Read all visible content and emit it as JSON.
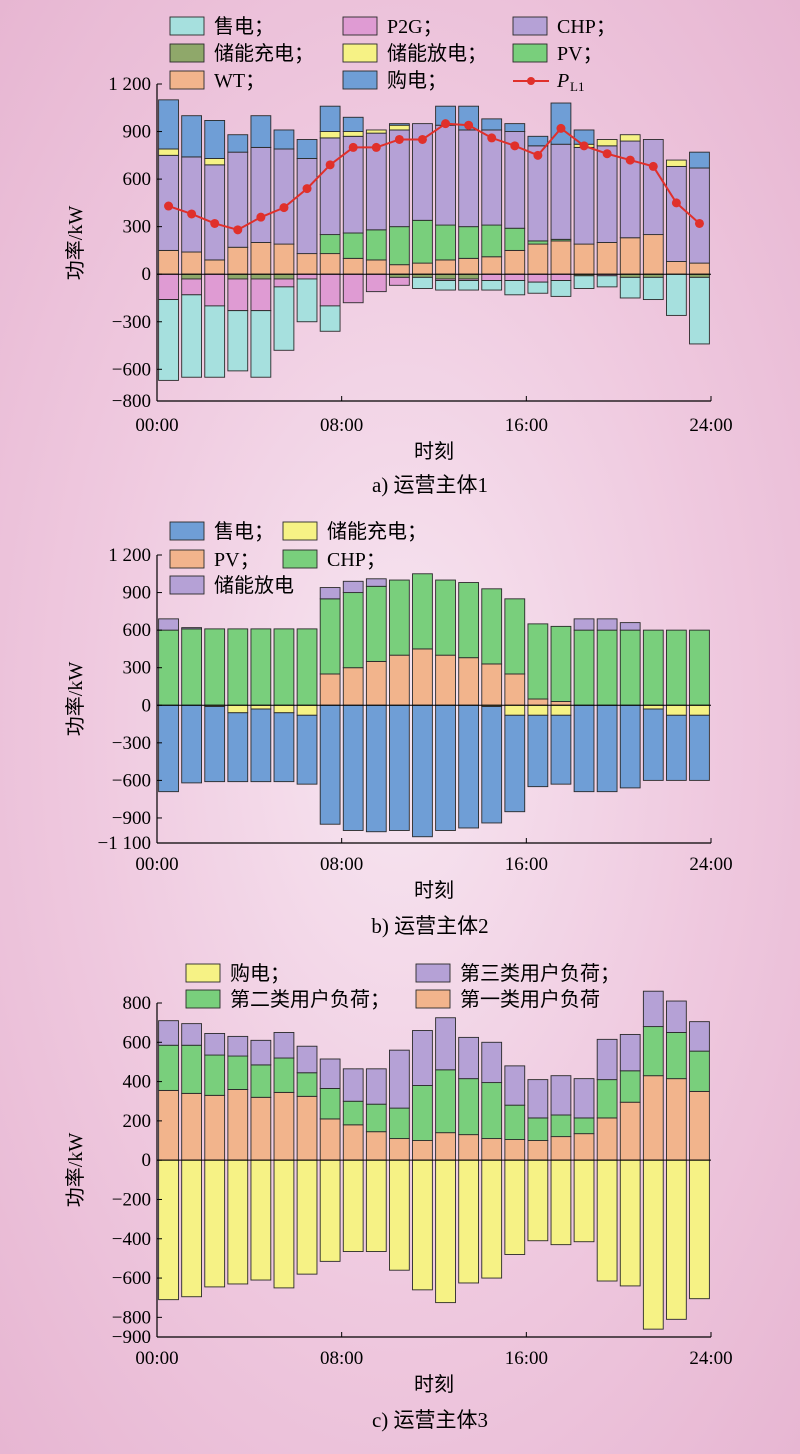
{
  "chart_data": [
    {
      "type": "bar",
      "stacked": true,
      "caption": "a) 运营主体1",
      "xlabel": "时刻",
      "ylabel": "功率/kW",
      "ylim": [
        -800,
        1200
      ],
      "yticks": [
        -800,
        -600,
        -300,
        0,
        300,
        600,
        900,
        1200
      ],
      "ytick_labels": [
        "−800",
        "−600",
        "−300",
        "0",
        "300",
        "600",
        "900",
        "1 200"
      ],
      "xticks": [
        "00:00",
        "08:00",
        "16:00",
        "24:00"
      ],
      "hours": [
        1,
        2,
        3,
        4,
        5,
        6,
        7,
        8,
        9,
        10,
        11,
        12,
        13,
        14,
        15,
        16,
        17,
        18,
        19,
        20,
        21,
        22,
        23,
        24
      ],
      "legend": [
        "售电；",
        "储能充电；",
        "P2G；",
        "储能放电；",
        "CHP；",
        "PV；",
        "WT；",
        "购电；"
      ],
      "pl1_label": "P",
      "pl1_sub": "L1",
      "series": [
        {
          "name": "WT",
          "color": "#f2b48c",
          "values": [
            150,
            140,
            90,
            170,
            200,
            190,
            130,
            130,
            100,
            90,
            60,
            70,
            90,
            100,
            110,
            150,
            190,
            210,
            190,
            200,
            230,
            250,
            80,
            70
          ]
        },
        {
          "name": "PV",
          "color": "#79cf7c",
          "values": [
            0,
            0,
            0,
            0,
            0,
            0,
            0,
            120,
            160,
            190,
            240,
            270,
            220,
            200,
            200,
            140,
            20,
            10,
            0,
            0,
            0,
            0,
            0,
            0
          ]
        },
        {
          "name": "CHP",
          "color": "#b5a1d6",
          "values": [
            600,
            600,
            600,
            600,
            600,
            600,
            600,
            610,
            610,
            610,
            610,
            610,
            630,
            610,
            600,
            610,
            600,
            600,
            610,
            610,
            610,
            600,
            600,
            600
          ]
        },
        {
          "name": "储能放电",
          "color": "#f6f285",
          "values": [
            40,
            0,
            40,
            0,
            0,
            0,
            0,
            40,
            30,
            20,
            30,
            0,
            0,
            0,
            0,
            0,
            0,
            0,
            20,
            40,
            40,
            0,
            40,
            0
          ]
        },
        {
          "name": "购电",
          "color": "#6f9ed6",
          "values": [
            310,
            260,
            240,
            110,
            200,
            120,
            120,
            160,
            90,
            0,
            10,
            0,
            120,
            150,
            70,
            50,
            60,
            260,
            90,
            0,
            0,
            0,
            0,
            100
          ]
        },
        {
          "name": "储能充电",
          "color": "#8fa86a",
          "values": [
            0,
            -30,
            0,
            -30,
            -30,
            -30,
            0,
            0,
            0,
            0,
            -20,
            -20,
            -30,
            -30,
            0,
            0,
            0,
            0,
            -10,
            0,
            -20,
            -20,
            0,
            -20
          ]
        },
        {
          "name": "P2G",
          "color": "#df9bd3",
          "values": [
            -160,
            -100,
            -200,
            -200,
            -200,
            -50,
            -30,
            -200,
            -180,
            -110,
            -50,
            0,
            -10,
            -10,
            -40,
            -40,
            -50,
            -40,
            0,
            -10,
            0,
            0,
            0,
            0
          ]
        },
        {
          "name": "售电",
          "color": "#a6e0de",
          "values": [
            -510,
            -520,
            -450,
            -380,
            -420,
            -400,
            -270,
            -160,
            0,
            0,
            0,
            -70,
            -60,
            -60,
            -60,
            -90,
            -70,
            -100,
            -80,
            -70,
            -130,
            -140,
            -260,
            -420
          ]
        }
      ],
      "PL1": [
        430,
        380,
        320,
        280,
        360,
        420,
        540,
        690,
        800,
        800,
        850,
        850,
        950,
        940,
        860,
        810,
        750,
        920,
        810,
        760,
        720,
        680,
        450,
        320
      ]
    },
    {
      "type": "bar",
      "stacked": true,
      "caption": "b) 运营主体2",
      "xlabel": "时刻",
      "ylabel": "功率/kW",
      "ylim": [
        -1100,
        1200
      ],
      "yticks": [
        -1100,
        -900,
        -600,
        -300,
        0,
        300,
        600,
        900,
        1200
      ],
      "ytick_labels": [
        "−1 100",
        "−900",
        "−600",
        "−300",
        "0",
        "300",
        "600",
        "900",
        "1 200"
      ],
      "xticks": [
        "00:00",
        "08:00",
        "16:00",
        "24:00"
      ],
      "hours": [
        1,
        2,
        3,
        4,
        5,
        6,
        7,
        8,
        9,
        10,
        11,
        12,
        13,
        14,
        15,
        16,
        17,
        18,
        19,
        20,
        21,
        22,
        23,
        24
      ],
      "legend": [
        "售电；",
        "储能充电；",
        "PV；",
        "CHP；",
        "储能放电"
      ],
      "series": [
        {
          "name": "PV",
          "color": "#f2b48c",
          "values": [
            0,
            0,
            0,
            0,
            0,
            0,
            0,
            250,
            300,
            350,
            400,
            450,
            400,
            380,
            330,
            250,
            50,
            30,
            0,
            0,
            0,
            0,
            0,
            0
          ]
        },
        {
          "name": "CHP",
          "color": "#79cf7c",
          "values": [
            600,
            610,
            610,
            610,
            610,
            610,
            610,
            600,
            600,
            600,
            600,
            600,
            600,
            600,
            600,
            600,
            600,
            600,
            600,
            600,
            600,
            600,
            600,
            600
          ]
        },
        {
          "name": "储能放电",
          "color": "#b5a1d6",
          "values": [
            90,
            10,
            0,
            0,
            0,
            0,
            0,
            90,
            90,
            60,
            0,
            0,
            0,
            0,
            0,
            0,
            0,
            0,
            90,
            90,
            60,
            0,
            0,
            0
          ]
        },
        {
          "name": "储能充电",
          "color": "#f6f285",
          "values": [
            0,
            0,
            -10,
            -60,
            -30,
            -60,
            -80,
            0,
            0,
            0,
            0,
            0,
            0,
            0,
            -10,
            -80,
            -80,
            -80,
            0,
            0,
            0,
            -30,
            -80,
            -80
          ]
        },
        {
          "name": "售电",
          "color": "#6f9ed6",
          "values": [
            -690,
            -620,
            -600,
            -550,
            -580,
            -550,
            -550,
            -950,
            -1000,
            -1010,
            -1000,
            -1050,
            -1000,
            -980,
            -930,
            -770,
            -570,
            -550,
            -690,
            -690,
            -660,
            -570,
            -520,
            -520
          ]
        }
      ]
    },
    {
      "type": "bar",
      "stacked": true,
      "caption": "c) 运营主体3",
      "xlabel": "时刻",
      "ylabel": "功率/kW",
      "ylim": [
        -900,
        800
      ],
      "yticks": [
        -900,
        -800,
        -600,
        -400,
        -200,
        0,
        200,
        400,
        600,
        800
      ],
      "ytick_labels": [
        "−900",
        "−800",
        "−600",
        "−400",
        "−200",
        "0",
        "200",
        "400",
        "600",
        "800"
      ],
      "xticks": [
        "00:00",
        "08:00",
        "16:00",
        "24:00"
      ],
      "hours": [
        1,
        2,
        3,
        4,
        5,
        6,
        7,
        8,
        9,
        10,
        11,
        12,
        13,
        14,
        15,
        16,
        17,
        18,
        19,
        20,
        21,
        22,
        23,
        24
      ],
      "legend": [
        "购电；",
        "第三类用户负荷；",
        "第二类用户负荷；",
        "第一类用户负荷"
      ],
      "series": [
        {
          "name": "第一类用户负荷",
          "color": "#f2b48c",
          "values": [
            355,
            340,
            330,
            360,
            320,
            345,
            325,
            210,
            180,
            145,
            110,
            100,
            140,
            130,
            110,
            105,
            100,
            120,
            135,
            215,
            295,
            430,
            415,
            350
          ]
        },
        {
          "name": "第二类用户负荷",
          "color": "#79cf7c",
          "values": [
            230,
            245,
            205,
            170,
            165,
            175,
            120,
            155,
            120,
            140,
            155,
            280,
            320,
            285,
            285,
            175,
            115,
            110,
            80,
            195,
            160,
            250,
            235,
            205
          ]
        },
        {
          "name": "第三类用户负荷",
          "color": "#b5a1d6",
          "values": [
            125,
            110,
            110,
            100,
            125,
            130,
            135,
            150,
            165,
            180,
            295,
            280,
            265,
            210,
            205,
            200,
            195,
            200,
            200,
            205,
            185,
            180,
            160,
            150
          ]
        },
        {
          "name": "购电",
          "color": "#f6f285",
          "values": [
            -710,
            -695,
            -645,
            -630,
            -610,
            -650,
            -580,
            -515,
            -465,
            -465,
            -560,
            -660,
            -725,
            -625,
            -600,
            -480,
            -410,
            -430,
            -415,
            -615,
            -640,
            -860,
            -810,
            -705
          ]
        }
      ]
    }
  ]
}
